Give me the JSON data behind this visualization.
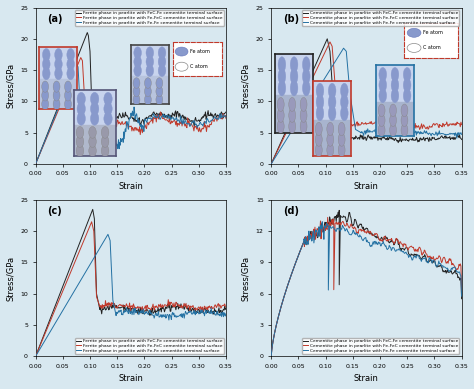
{
  "fig_bg": "#d8e8f0",
  "subplot_bg": "#d8e8f0",
  "title_a": "(a)",
  "title_b": "(b)",
  "title_c": "(c)",
  "title_d": "(d)",
  "ylabel": "Stress/GPa",
  "xlabel": "Strain",
  "ylim_ab": [
    0,
    25
  ],
  "ylim_c": [
    0,
    25
  ],
  "ylim_d": [
    0,
    15
  ],
  "yticks_ab": [
    0,
    5,
    10,
    15,
    20,
    25
  ],
  "yticks_c": [
    0,
    5,
    10,
    15,
    20,
    25
  ],
  "yticks_d": [
    0,
    3,
    6,
    9,
    12,
    15
  ],
  "xticks": [
    0.0,
    0.05,
    0.1,
    0.15,
    0.2,
    0.25,
    0.3,
    0.35
  ],
  "xlim": [
    0.0,
    0.35
  ],
  "color_black": "#222222",
  "color_red": "#c0392b",
  "color_blue": "#2471a3",
  "legend_a": [
    "Ferrite phase in pearlite with FeC-Fe cementite terminal surface",
    "Ferrite phase in pearlite with Fe-FeC cementite terminal surface",
    "Ferrite phase in pearlite with Fe-Fe cementite terminal surface"
  ],
  "legend_b": [
    "Cementite phase in pearlite with FeC-Fe cementite terminal surface",
    "Cementite phase in pearlite with Fe-FeC cementite terminal surface",
    "Cementite phase in pearlite with Fe-Fe cementite terminal surface"
  ],
  "legend_c": [
    "Ferrite phase in pearlite with FeC-Fe cementite terminal surface",
    "Ferrite phase in pearlite with Fe-FeC cementite terminal surface",
    "Ferrite phase in pearlite with Fe-Fe cementite terminal surface"
  ],
  "legend_d": [
    "Cementite phase in pearlite with FeC-Fe cementite terminal surface",
    "Cementite phase in pearlite with Fe-FeC cementite terminal surface",
    "Cementite phase in pearlite with Fe-Fe cementite terminal surface"
  ]
}
